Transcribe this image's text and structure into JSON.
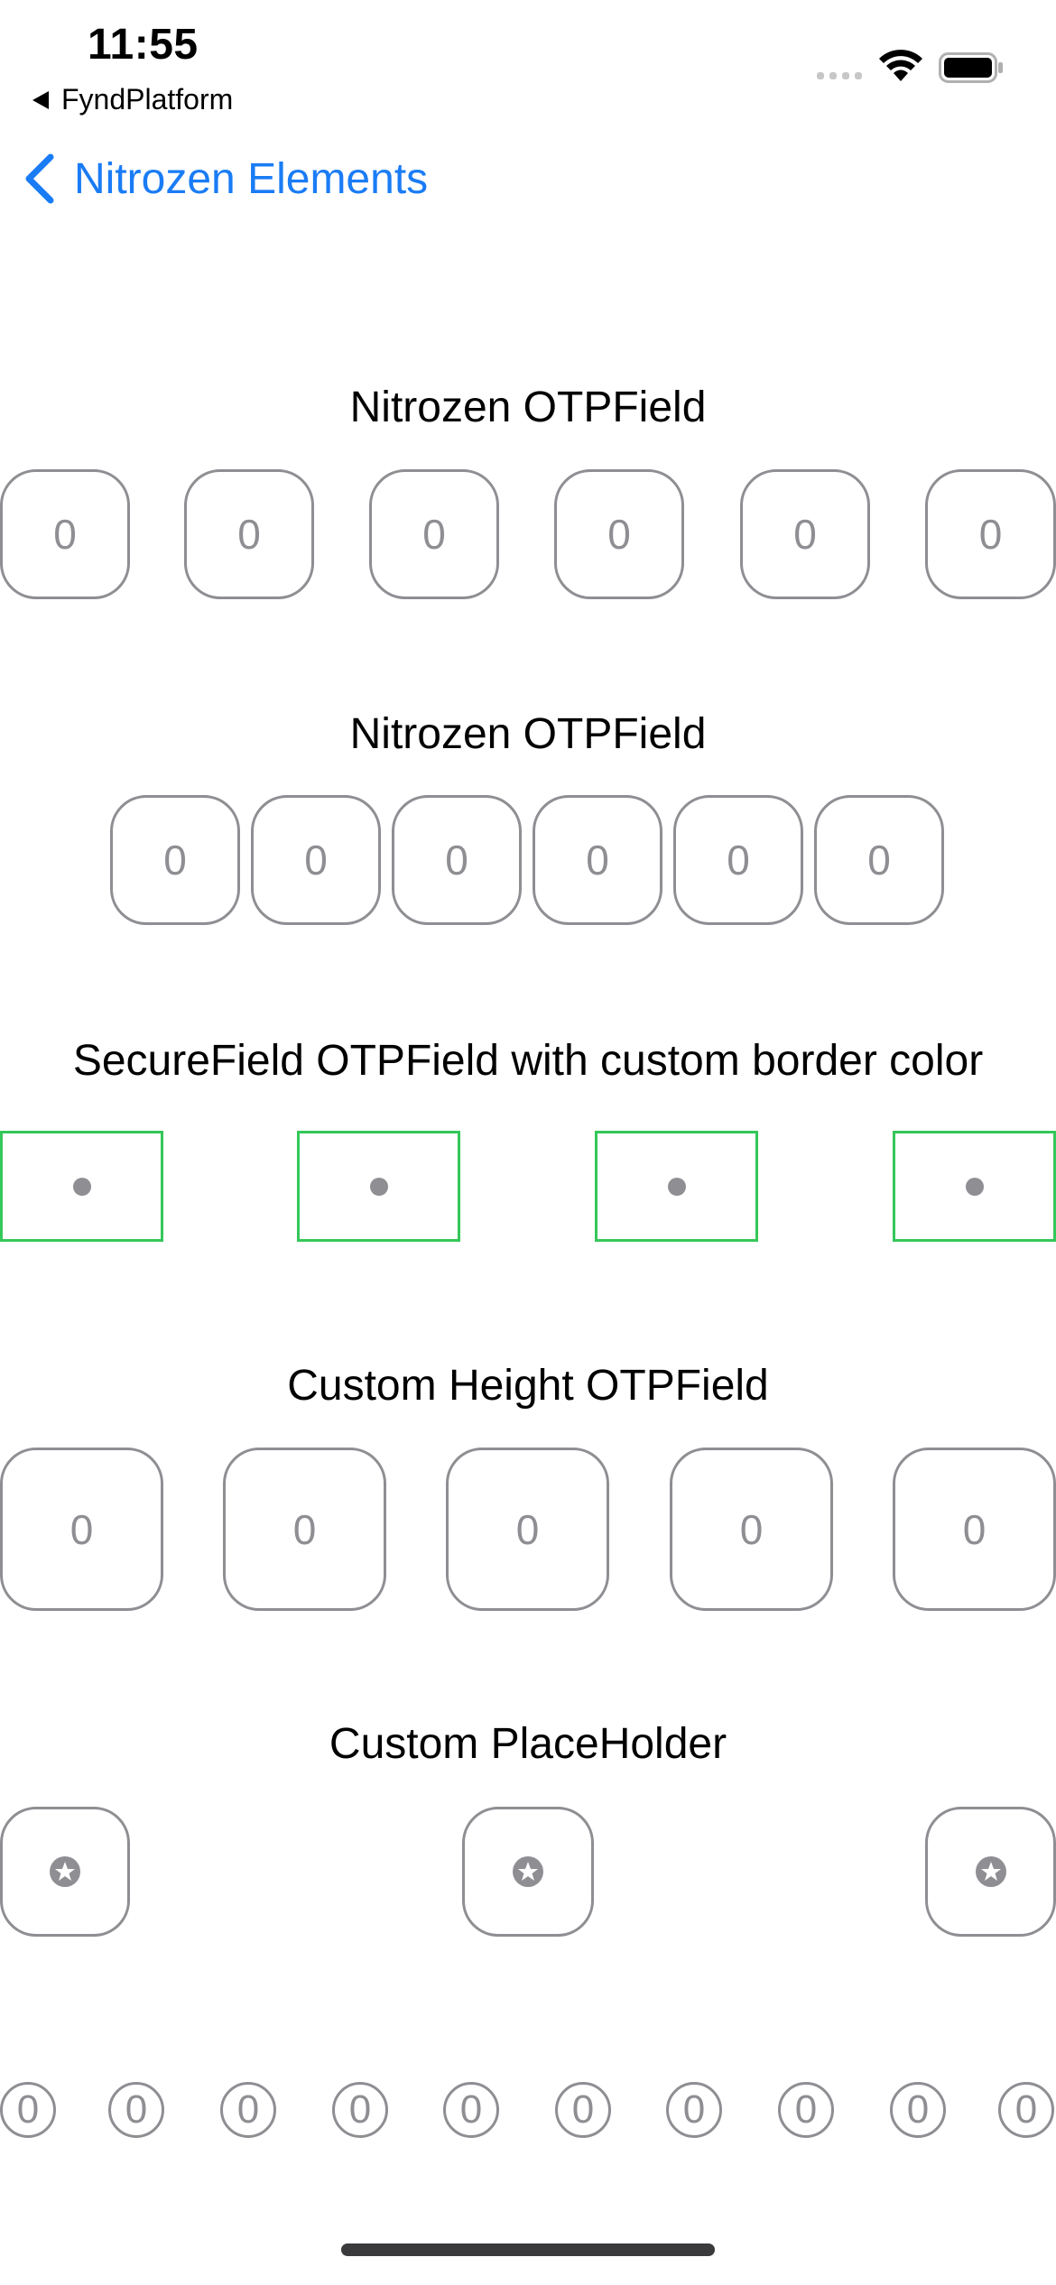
{
  "status_bar": {
    "time": "11:55",
    "back_app": "FyndPlatform"
  },
  "nav": {
    "back_label": "Nitrozen Elements"
  },
  "sections": [
    {
      "title": "Nitrozen OTPField",
      "fields": [
        "0",
        "0",
        "0",
        "0",
        "0",
        "0"
      ]
    },
    {
      "title": "Nitrozen OTPField",
      "fields": [
        "0",
        "0",
        "0",
        "0",
        "0",
        "0"
      ]
    },
    {
      "title": "SecureField OTPField with custom border color",
      "field_count": 4,
      "border_color": "#34c759"
    },
    {
      "title": "Custom Height OTPField",
      "fields": [
        "0",
        "0",
        "0",
        "0",
        "0"
      ]
    },
    {
      "title": "Custom PlaceHolder",
      "placeholder_icon": "star-circle-icon",
      "field_count": 3
    }
  ],
  "circle_row": {
    "fields": [
      "0",
      "0",
      "0",
      "0",
      "0",
      "0",
      "0",
      "0",
      "0",
      "0"
    ]
  },
  "colors": {
    "accent": "#1a7cf5",
    "field_border": "#8e8e93",
    "secure_border": "#34c759"
  }
}
